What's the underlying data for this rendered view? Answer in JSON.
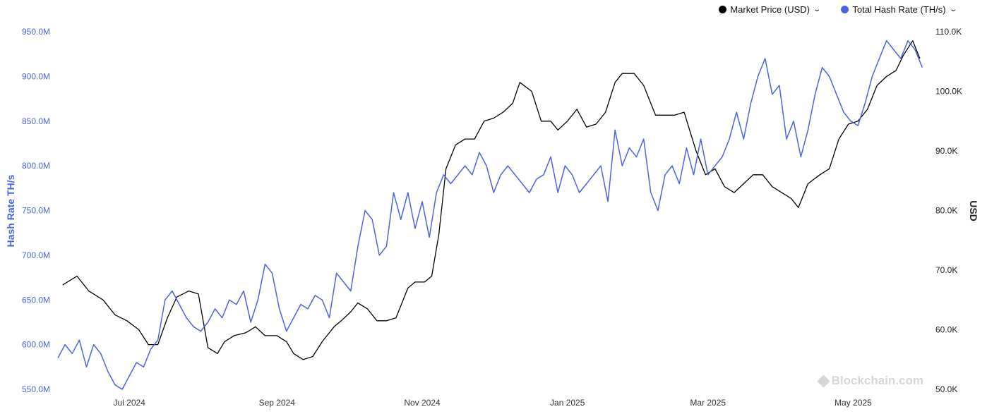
{
  "legend": {
    "price_label": "Market Price (USD)",
    "hash_label": "Total Hash Rate (TH/s)"
  },
  "watermark": "Blockchain.com",
  "colors": {
    "price": "#000000",
    "hash": "#4a63e0",
    "axis_left": "#4a63e0",
    "axis_right": "#222222"
  },
  "chart_data": {
    "type": "line",
    "title": "",
    "x_range": [
      "2024-06-01",
      "2025-06-01"
    ],
    "x_ticks": [
      {
        "date": "2024-07-01",
        "label": "Jul 2024"
      },
      {
        "date": "2024-09-01",
        "label": "Sep 2024"
      },
      {
        "date": "2024-11-01",
        "label": "Nov 2024"
      },
      {
        "date": "2025-01-01",
        "label": "Jan 2025"
      },
      {
        "date": "2025-03-01",
        "label": "Mar 2025"
      },
      {
        "date": "2025-05-01",
        "label": "May 2025"
      }
    ],
    "y_left": {
      "label": "Hash Rate TH/s",
      "range": [
        550,
        950
      ],
      "unit": "M",
      "ticks": [
        {
          "value": 550,
          "label": "550.0M"
        },
        {
          "value": 600,
          "label": "600.0M"
        },
        {
          "value": 650,
          "label": "650.0M"
        },
        {
          "value": 700,
          "label": "700.0M"
        },
        {
          "value": 750,
          "label": "750.0M"
        },
        {
          "value": 800,
          "label": "800.0M"
        },
        {
          "value": 850,
          "label": "850.0M"
        },
        {
          "value": 900,
          "label": "900.0M"
        },
        {
          "value": 950,
          "label": "950.0M"
        }
      ]
    },
    "y_right": {
      "label": "USD",
      "range": [
        50,
        110
      ],
      "unit": "K",
      "ticks": [
        {
          "value": 50,
          "label": "50.0K"
        },
        {
          "value": 60,
          "label": "60.0K"
        },
        {
          "value": 70,
          "label": "70.0K"
        },
        {
          "value": 80,
          "label": "80.0K"
        },
        {
          "value": 90,
          "label": "90.0K"
        },
        {
          "value": 100,
          "label": "100.0K"
        },
        {
          "value": 110,
          "label": "110.0K"
        }
      ]
    },
    "grid": false,
    "legend_position": "top-right",
    "series": [
      {
        "name": "Market Price (USD)",
        "axis": "right",
        "color": "#000000",
        "x": [
          "2024-06-03",
          "2024-06-09",
          "2024-06-14",
          "2024-06-20",
          "2024-06-25",
          "2024-06-30",
          "2024-07-05",
          "2024-07-09",
          "2024-07-13",
          "2024-07-17",
          "2024-07-21",
          "2024-07-26",
          "2024-07-30",
          "2024-08-03",
          "2024-08-07",
          "2024-08-10",
          "2024-08-14",
          "2024-08-19",
          "2024-08-23",
          "2024-08-27",
          "2024-09-01",
          "2024-09-05",
          "2024-09-08",
          "2024-09-12",
          "2024-09-16",
          "2024-09-20",
          "2024-09-25",
          "2024-09-28",
          "2024-10-02",
          "2024-10-05",
          "2024-10-09",
          "2024-10-13",
          "2024-10-17",
          "2024-10-21",
          "2024-10-26",
          "2024-10-29",
          "2024-11-02",
          "2024-11-05",
          "2024-11-08",
          "2024-11-11",
          "2024-11-15",
          "2024-11-19",
          "2024-11-23",
          "2024-11-27",
          "2024-12-01",
          "2024-12-05",
          "2024-12-09",
          "2024-12-12",
          "2024-12-17",
          "2024-12-21",
          "2024-12-25",
          "2024-12-28",
          "2025-01-01",
          "2025-01-05",
          "2025-01-09",
          "2025-01-13",
          "2025-01-17",
          "2025-01-21",
          "2025-01-24",
          "2025-01-29",
          "2025-02-02",
          "2025-02-07",
          "2025-02-11",
          "2025-02-15",
          "2025-02-19",
          "2025-02-24",
          "2025-02-28",
          "2025-03-04",
          "2025-03-08",
          "2025-03-12",
          "2025-03-16",
          "2025-03-20",
          "2025-03-24",
          "2025-03-28",
          "2025-04-01",
          "2025-04-05",
          "2025-04-08",
          "2025-04-12",
          "2025-04-17",
          "2025-04-21",
          "2025-04-25",
          "2025-04-29",
          "2025-05-03",
          "2025-05-07",
          "2025-05-11",
          "2025-05-15",
          "2025-05-19",
          "2025-05-22",
          "2025-05-26",
          "2025-05-29"
        ],
        "y": [
          67.5,
          69,
          66.5,
          65,
          62.5,
          61.5,
          60,
          57.5,
          57.5,
          62,
          65.5,
          66.5,
          66,
          57,
          56,
          58,
          59,
          59.5,
          60.5,
          59,
          59,
          58,
          56,
          55,
          55.5,
          58,
          60.5,
          61.5,
          63,
          64.5,
          63.5,
          61.5,
          61.5,
          62,
          67,
          68,
          68,
          69,
          76,
          87,
          91,
          92,
          92,
          95,
          95.5,
          96.5,
          98,
          101.5,
          100,
          95,
          95,
          93.5,
          95,
          97,
          94,
          94.5,
          96.5,
          101.5,
          103,
          103,
          101,
          96,
          96,
          96,
          96.5,
          90,
          86,
          87,
          84,
          83,
          84.5,
          86,
          86,
          84,
          83,
          82,
          80.5,
          84.5,
          86,
          87,
          92,
          94.5,
          95,
          97,
          101,
          102.5,
          103.5,
          106,
          108.5,
          105.5
        ]
      },
      {
        "name": "Total Hash Rate (TH/s)",
        "axis": "left",
        "color": "#4a63e0",
        "x": [
          "2024-06-01",
          "2024-06-04",
          "2024-06-07",
          "2024-06-10",
          "2024-06-13",
          "2024-06-16",
          "2024-06-19",
          "2024-06-22",
          "2024-06-25",
          "2024-06-28",
          "2024-07-01",
          "2024-07-04",
          "2024-07-07",
          "2024-07-10",
          "2024-07-13",
          "2024-07-16",
          "2024-07-19",
          "2024-07-22",
          "2024-07-25",
          "2024-07-28",
          "2024-07-31",
          "2024-08-03",
          "2024-08-06",
          "2024-08-09",
          "2024-08-12",
          "2024-08-15",
          "2024-08-18",
          "2024-08-21",
          "2024-08-24",
          "2024-08-27",
          "2024-08-30",
          "2024-09-02",
          "2024-09-05",
          "2024-09-08",
          "2024-09-11",
          "2024-09-14",
          "2024-09-17",
          "2024-09-20",
          "2024-09-23",
          "2024-09-26",
          "2024-09-29",
          "2024-10-02",
          "2024-10-05",
          "2024-10-08",
          "2024-10-11",
          "2024-10-14",
          "2024-10-17",
          "2024-10-20",
          "2024-10-23",
          "2024-10-26",
          "2024-10-29",
          "2024-11-01",
          "2024-11-04",
          "2024-11-07",
          "2024-11-10",
          "2024-11-13",
          "2024-11-16",
          "2024-11-19",
          "2024-11-22",
          "2024-11-25",
          "2024-11-28",
          "2024-12-01",
          "2024-12-04",
          "2024-12-07",
          "2024-12-10",
          "2024-12-13",
          "2024-12-16",
          "2024-12-19",
          "2024-12-22",
          "2024-12-25",
          "2024-12-28",
          "2024-12-31",
          "2025-01-03",
          "2025-01-06",
          "2025-01-09",
          "2025-01-12",
          "2025-01-15",
          "2025-01-18",
          "2025-01-21",
          "2025-01-24",
          "2025-01-27",
          "2025-01-30",
          "2025-02-02",
          "2025-02-05",
          "2025-02-08",
          "2025-02-11",
          "2025-02-14",
          "2025-02-17",
          "2025-02-20",
          "2025-02-23",
          "2025-02-26",
          "2025-03-01",
          "2025-03-04",
          "2025-03-07",
          "2025-03-10",
          "2025-03-13",
          "2025-03-16",
          "2025-03-19",
          "2025-03-22",
          "2025-03-25",
          "2025-03-28",
          "2025-03-31",
          "2025-04-03",
          "2025-04-06",
          "2025-04-09",
          "2025-04-12",
          "2025-04-15",
          "2025-04-18",
          "2025-04-21",
          "2025-04-24",
          "2025-04-27",
          "2025-04-30",
          "2025-05-03",
          "2025-05-06",
          "2025-05-09",
          "2025-05-12",
          "2025-05-15",
          "2025-05-18",
          "2025-05-21",
          "2025-05-24",
          "2025-05-27",
          "2025-05-30"
        ],
        "y": [
          585,
          600,
          590,
          605,
          575,
          600,
          590,
          570,
          555,
          550,
          565,
          580,
          575,
          595,
          605,
          650,
          660,
          645,
          630,
          620,
          615,
          625,
          640,
          630,
          650,
          645,
          660,
          625,
          650,
          690,
          680,
          640,
          615,
          630,
          645,
          640,
          655,
          650,
          630,
          680,
          670,
          660,
          710,
          750,
          740,
          700,
          710,
          770,
          740,
          770,
          730,
          760,
          720,
          770,
          790,
          780,
          790,
          800,
          790,
          815,
          800,
          770,
          790,
          800,
          790,
          780,
          770,
          785,
          790,
          810,
          770,
          800,
          790,
          770,
          780,
          790,
          800,
          760,
          840,
          800,
          820,
          810,
          830,
          770,
          750,
          790,
          800,
          780,
          820,
          790,
          830,
          790,
          800,
          810,
          830,
          860,
          830,
          870,
          900,
          920,
          880,
          890,
          830,
          850,
          810,
          840,
          880,
          910,
          900,
          880,
          860,
          850,
          845,
          870,
          900,
          920,
          940,
          930,
          920,
          940,
          930,
          910
        ]
      }
    ]
  }
}
